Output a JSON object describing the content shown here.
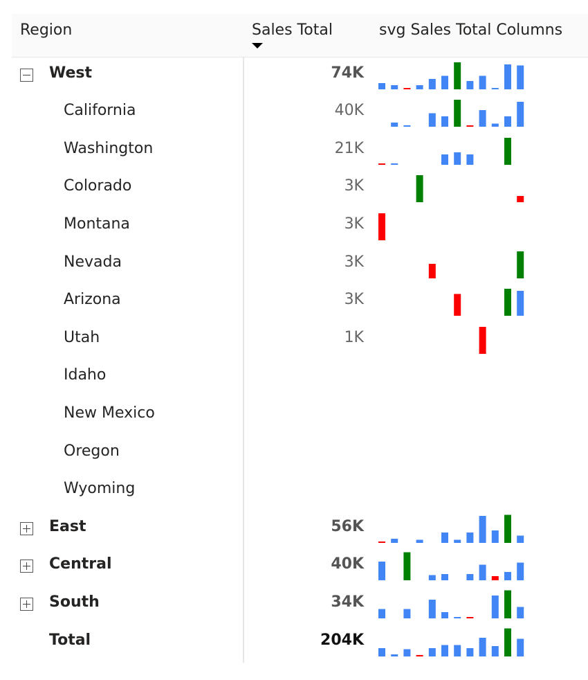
{
  "header": {
    "region": "Region",
    "sales_total": "Sales Total",
    "columns": "svg Sales Total Columns"
  },
  "colors": {
    "positive": "#4285f4",
    "negative": "#ff0000",
    "highlight": "#008000",
    "text": "#252423",
    "value_text": "#666666"
  },
  "rows": [
    {
      "label": "West",
      "value": "74K",
      "level": 0,
      "expander": "collapse-icon",
      "bold": true,
      "bars": [
        {
          "v": 3,
          "c": "positive"
        },
        {
          "v": 2,
          "c": "positive"
        },
        {
          "v": 0.5,
          "c": "negative"
        },
        {
          "v": 2,
          "c": "positive"
        },
        {
          "v": 5,
          "c": "positive"
        },
        {
          "v": 6.5,
          "c": "positive"
        },
        {
          "v": 13,
          "c": "highlight"
        },
        {
          "v": 4,
          "c": "positive"
        },
        {
          "v": 6.5,
          "c": "positive"
        },
        {
          "v": 0.5,
          "c": "positive"
        },
        {
          "v": 12,
          "c": "positive"
        },
        {
          "v": 11.5,
          "c": "positive"
        }
      ]
    },
    {
      "label": "California",
      "value": "40K",
      "level": 1,
      "bars": [
        null,
        {
          "v": 2,
          "c": "positive"
        },
        {
          "v": 0.7,
          "c": "positive"
        },
        null,
        {
          "v": 6.5,
          "c": "positive"
        },
        {
          "v": 5,
          "c": "positive"
        },
        {
          "v": 13,
          "c": "highlight"
        },
        {
          "v": 0.5,
          "c": "negative"
        },
        {
          "v": 8,
          "c": "positive"
        },
        {
          "v": 1.5,
          "c": "positive"
        },
        {
          "v": 5,
          "c": "positive"
        },
        {
          "v": 12,
          "c": "positive"
        }
      ]
    },
    {
      "label": "Washington",
      "value": "21K",
      "level": 1,
      "bars": [
        {
          "v": 0.5,
          "c": "negative"
        },
        {
          "v": 0.7,
          "c": "positive"
        },
        null,
        null,
        null,
        {
          "v": 5,
          "c": "positive"
        },
        {
          "v": 6,
          "c": "positive"
        },
        {
          "v": 5,
          "c": "positive"
        },
        null,
        null,
        {
          "v": 13,
          "c": "highlight"
        },
        null
      ]
    },
    {
      "label": "Colorado",
      "value": "3K",
      "level": 1,
      "bars": [
        null,
        null,
        null,
        {
          "v": 13,
          "c": "highlight"
        },
        null,
        null,
        null,
        null,
        null,
        null,
        null,
        {
          "v": 3,
          "c": "negative"
        }
      ]
    },
    {
      "label": "Montana",
      "value": "3K",
      "level": 1,
      "bars": [
        {
          "v": 13,
          "c": "negative"
        },
        null,
        null,
        null,
        null,
        null,
        null,
        null,
        null,
        null,
        null,
        null
      ]
    },
    {
      "label": "Nevada",
      "value": "3K",
      "level": 1,
      "bars": [
        null,
        null,
        null,
        null,
        {
          "v": 7,
          "c": "negative"
        },
        null,
        null,
        null,
        null,
        null,
        null,
        {
          "v": 13,
          "c": "highlight"
        }
      ]
    },
    {
      "label": "Arizona",
      "value": "3K",
      "level": 1,
      "bars": [
        null,
        null,
        null,
        null,
        null,
        null,
        {
          "v": 10.5,
          "c": "negative"
        },
        null,
        null,
        null,
        {
          "v": 13,
          "c": "highlight"
        },
        {
          "v": 12,
          "c": "positive"
        }
      ]
    },
    {
      "label": "Utah",
      "value": "1K",
      "level": 1,
      "bars": [
        null,
        null,
        null,
        null,
        null,
        null,
        null,
        null,
        {
          "v": 13,
          "c": "negative"
        },
        null,
        null,
        null
      ]
    },
    {
      "label": "Idaho",
      "value": "",
      "level": 1,
      "bars": []
    },
    {
      "label": "New Mexico",
      "value": "",
      "level": 1,
      "bars": []
    },
    {
      "label": "Oregon",
      "value": "",
      "level": 1,
      "bars": []
    },
    {
      "label": "Wyoming",
      "value": "",
      "level": 1,
      "bars": []
    },
    {
      "label": "East",
      "value": "56K",
      "level": 0,
      "expander": "expand-icon",
      "bold": true,
      "bars": [
        {
          "v": 0.5,
          "c": "negative"
        },
        {
          "v": 2,
          "c": "positive"
        },
        null,
        {
          "v": 1.5,
          "c": "positive"
        },
        null,
        {
          "v": 5,
          "c": "positive"
        },
        {
          "v": 1.5,
          "c": "positive"
        },
        {
          "v": 5,
          "c": "positive"
        },
        {
          "v": 13,
          "c": "positive"
        },
        {
          "v": 6,
          "c": "positive"
        },
        {
          "v": 13.5,
          "c": "highlight"
        },
        {
          "v": 3.5,
          "c": "positive"
        }
      ]
    },
    {
      "label": "Central",
      "value": "40K",
      "level": 0,
      "expander": "expand-icon",
      "bold": true,
      "bars": [
        {
          "v": 9,
          "c": "positive"
        },
        null,
        {
          "v": 13.5,
          "c": "highlight"
        },
        null,
        {
          "v": 2.5,
          "c": "positive"
        },
        {
          "v": 3,
          "c": "positive"
        },
        null,
        {
          "v": 3,
          "c": "positive"
        },
        {
          "v": 7.5,
          "c": "positive"
        },
        {
          "v": 2,
          "c": "negative"
        },
        {
          "v": 4,
          "c": "positive"
        },
        {
          "v": 8.5,
          "c": "positive"
        }
      ]
    },
    {
      "label": "South",
      "value": "34K",
      "level": 0,
      "expander": "expand-icon",
      "bold": true,
      "bars": [
        {
          "v": 4.5,
          "c": "positive"
        },
        null,
        {
          "v": 4.5,
          "c": "positive"
        },
        null,
        {
          "v": 9,
          "c": "positive"
        },
        {
          "v": 3,
          "c": "positive"
        },
        {
          "v": 0.5,
          "c": "positive"
        },
        {
          "v": 0.5,
          "c": "negative"
        },
        null,
        {
          "v": 11,
          "c": "positive"
        },
        {
          "v": 13.5,
          "c": "highlight"
        },
        {
          "v": 5.5,
          "c": "positive"
        }
      ]
    },
    {
      "label": "Total",
      "value": "204K",
      "level": 0,
      "bold": true,
      "total": true,
      "bars": [
        {
          "v": 4,
          "c": "positive"
        },
        {
          "v": 1,
          "c": "positive"
        },
        {
          "v": 3.5,
          "c": "positive"
        },
        {
          "v": 0.7,
          "c": "negative"
        },
        {
          "v": 4,
          "c": "positive"
        },
        {
          "v": 5.5,
          "c": "positive"
        },
        {
          "v": 5.5,
          "c": "positive"
        },
        {
          "v": 4,
          "c": "positive"
        },
        {
          "v": 9,
          "c": "positive"
        },
        {
          "v": 5,
          "c": "positive"
        },
        {
          "v": 13.5,
          "c": "highlight"
        },
        {
          "v": 8.5,
          "c": "positive"
        }
      ]
    }
  ]
}
